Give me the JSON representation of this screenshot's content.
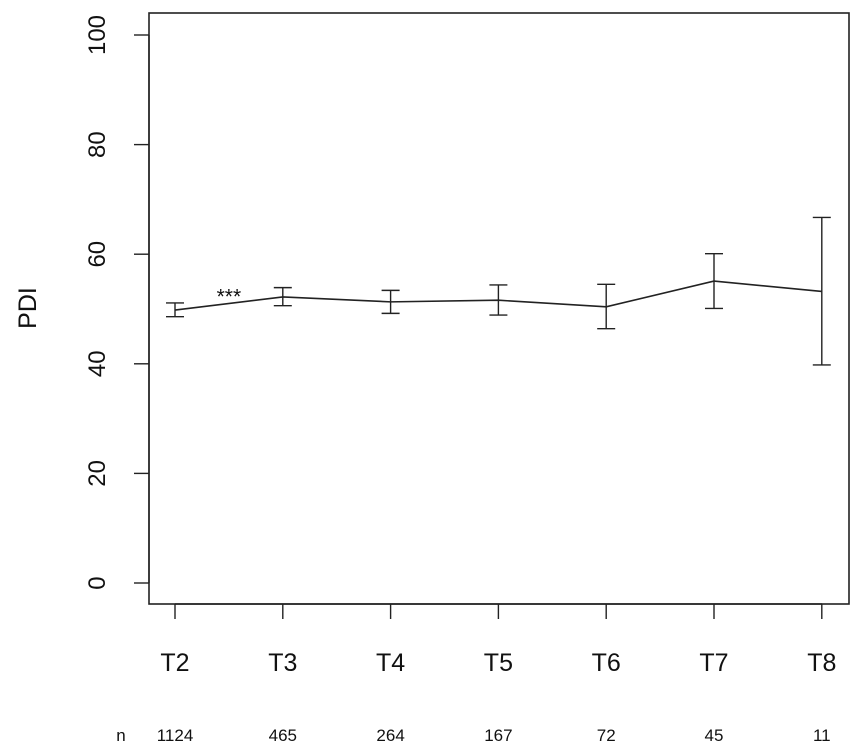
{
  "chart_data": {
    "type": "line",
    "title": "",
    "xlabel": "",
    "ylabel": "PDI",
    "ylim": [
      0,
      100
    ],
    "yticks": [
      0,
      20,
      40,
      60,
      80,
      100
    ],
    "grid": false,
    "categories": [
      "T2",
      "T3",
      "T4",
      "T5",
      "T6",
      "T7",
      "T8"
    ],
    "series": [
      {
        "values": [
          49.8,
          52.2,
          51.3,
          51.6,
          50.4,
          55.1,
          53.2
        ],
        "err_low": [
          48.6,
          50.6,
          49.2,
          48.9,
          46.4,
          50.1,
          39.8
        ],
        "err_high": [
          51.1,
          53.9,
          53.4,
          54.4,
          54.5,
          60.1,
          66.7
        ]
      }
    ],
    "annotations": [
      {
        "text": "***",
        "between": [
          "T2",
          "T3"
        ],
        "y": 52.5
      }
    ],
    "n_label": "n",
    "n_values": [
      "1124",
      "465",
      "264",
      "167",
      "72",
      "45",
      "11"
    ]
  }
}
